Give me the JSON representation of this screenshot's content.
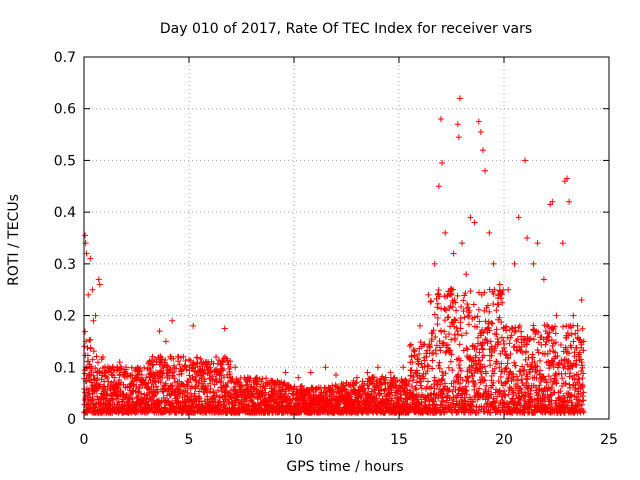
{
  "chart_data": {
    "type": "scatter",
    "title": "Day 010 of 2017, Rate Of TEC Index for receiver vars",
    "xlabel": "GPS time / hours",
    "ylabel": "ROTI / TECUs",
    "xlim": [
      0,
      25
    ],
    "ylim": [
      0,
      0.7
    ],
    "xticks": [
      0,
      5,
      10,
      15,
      20,
      25
    ],
    "yticks": [
      0,
      0.1,
      0.2,
      0.3,
      0.4,
      0.5,
      0.6,
      0.7
    ],
    "xtick_labels": [
      "0",
      "5",
      "10",
      "15",
      "20",
      "25"
    ],
    "ytick_labels": [
      "0",
      "0.1",
      "0.2",
      "0.3",
      "0.4",
      "0.5",
      "0.6",
      "0.7"
    ],
    "grid": true,
    "marker": "+",
    "marker_color": "#ff0000",
    "series": [
      {
        "name": "ROTI",
        "points": [
          [
            0.05,
            0.355
          ],
          [
            0.08,
            0.34
          ],
          [
            0.12,
            0.32
          ],
          [
            0.3,
            0.31
          ],
          [
            0.4,
            0.25
          ],
          [
            0.55,
            0.2
          ],
          [
            0.7,
            0.27
          ],
          [
            0.75,
            0.26
          ],
          [
            0.2,
            0.24
          ],
          [
            0.45,
            0.19
          ],
          [
            0.1,
            0.15
          ],
          [
            0.9,
            0.12
          ],
          [
            1.0,
            0.1
          ],
          [
            1.3,
            0.09
          ],
          [
            1.7,
            0.11
          ],
          [
            2.0,
            0.1
          ],
          [
            2.5,
            0.08
          ],
          [
            3.0,
            0.06
          ],
          [
            3.6,
            0.17
          ],
          [
            3.9,
            0.15
          ],
          [
            4.2,
            0.19
          ],
          [
            4.5,
            0.12
          ],
          [
            5.2,
            0.18
          ],
          [
            5.6,
            0.11
          ],
          [
            6.0,
            0.09
          ],
          [
            6.7,
            0.175
          ],
          [
            7.2,
            0.1
          ],
          [
            7.8,
            0.06
          ],
          [
            8.5,
            0.055
          ],
          [
            9.0,
            0.07
          ],
          [
            9.6,
            0.09
          ],
          [
            10.2,
            0.08
          ],
          [
            10.8,
            0.09
          ],
          [
            11.5,
            0.1
          ],
          [
            12.0,
            0.085
          ],
          [
            12.5,
            0.07
          ],
          [
            13.0,
            0.08
          ],
          [
            13.5,
            0.09
          ],
          [
            14.0,
            0.1
          ],
          [
            14.6,
            0.09
          ],
          [
            15.2,
            0.1
          ],
          [
            15.6,
            0.12
          ],
          [
            16.0,
            0.18
          ],
          [
            16.4,
            0.24
          ],
          [
            16.7,
            0.3
          ],
          [
            16.9,
            0.45
          ],
          [
            17.0,
            0.58
          ],
          [
            17.05,
            0.495
          ],
          [
            17.2,
            0.36
          ],
          [
            17.5,
            0.25
          ],
          [
            17.6,
            0.32
          ],
          [
            17.8,
            0.57
          ],
          [
            17.85,
            0.545
          ],
          [
            17.9,
            0.62
          ],
          [
            18.0,
            0.34
          ],
          [
            18.2,
            0.28
          ],
          [
            18.4,
            0.39
          ],
          [
            18.6,
            0.38
          ],
          [
            18.8,
            0.575
          ],
          [
            18.9,
            0.555
          ],
          [
            19.0,
            0.52
          ],
          [
            19.1,
            0.48
          ],
          [
            19.3,
            0.36
          ],
          [
            19.5,
            0.3
          ],
          [
            19.8,
            0.26
          ],
          [
            20.2,
            0.25
          ],
          [
            20.5,
            0.3
          ],
          [
            20.7,
            0.39
          ],
          [
            21.0,
            0.5
          ],
          [
            21.1,
            0.35
          ],
          [
            21.4,
            0.3
          ],
          [
            21.6,
            0.34
          ],
          [
            21.9,
            0.27
          ],
          [
            22.2,
            0.415
          ],
          [
            22.3,
            0.42
          ],
          [
            22.5,
            0.2
          ],
          [
            22.8,
            0.34
          ],
          [
            22.9,
            0.46
          ],
          [
            23.0,
            0.465
          ],
          [
            23.1,
            0.42
          ],
          [
            23.3,
            0.2
          ],
          [
            23.5,
            0.18
          ],
          [
            23.7,
            0.23
          ],
          [
            23.8,
            0.15
          ]
        ]
      }
    ]
  }
}
